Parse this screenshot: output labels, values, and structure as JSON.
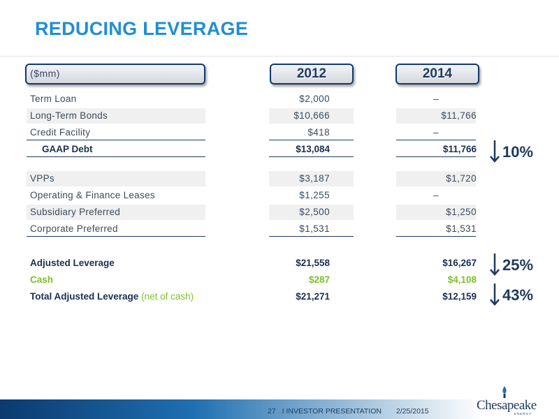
{
  "title": "REDUCING LEVERAGE",
  "header": {
    "units": "($mm)",
    "col1": "2012",
    "col2": "2014"
  },
  "rows": {
    "term_loan": {
      "label": "Term Loan",
      "v2012": "$2,000",
      "v2014": "–"
    },
    "long_term_bonds": {
      "label": "Long-Term Bonds",
      "v2012": "$10,666",
      "v2014": "$11,766"
    },
    "credit_facility": {
      "label": "Credit Facility",
      "v2012": "$418",
      "v2014": "–"
    },
    "gaap_debt": {
      "label": "GAAP Debt",
      "v2012": "$13,084",
      "v2014": "$11,766"
    },
    "vpps": {
      "label": "VPPs",
      "v2012": "$3,187",
      "v2014": "$1,720"
    },
    "leases": {
      "label": "Operating & Finance Leases",
      "v2012": "$1,255",
      "v2014": "–"
    },
    "subsidiary_preferred": {
      "label": "Subsidiary Preferred",
      "v2012": "$2,500",
      "v2014": "$1,250"
    },
    "corporate_preferred": {
      "label": "Corporate Preferred",
      "v2012": "$1,531",
      "v2014": "$1,531"
    },
    "adjusted_leverage": {
      "label": "Adjusted Leverage",
      "v2012": "$21,558",
      "v2014": "$16,267"
    },
    "cash": {
      "label": "Cash",
      "v2012": "$287",
      "v2014": "$4,108"
    },
    "total_adjusted": {
      "label": "Total Adjusted Leverage",
      "label_suffix": "(net of cash)",
      "v2012": "$21,271",
      "v2014": "$12,159"
    }
  },
  "reductions": {
    "gaap_debt": "10%",
    "adjusted_leverage": "25%",
    "total_adjusted": "43%"
  },
  "footer": {
    "page": "27",
    "section": "I INVESTOR PRESENTATION",
    "date": "2/25/2015"
  },
  "logo": {
    "name": "Chesapeake",
    "sub": "ENERGY"
  },
  "colors": {
    "title": "#1f8fd1",
    "navy": "#1f3a5f",
    "green": "#7fbf2a",
    "band": "#f0f0f0"
  }
}
